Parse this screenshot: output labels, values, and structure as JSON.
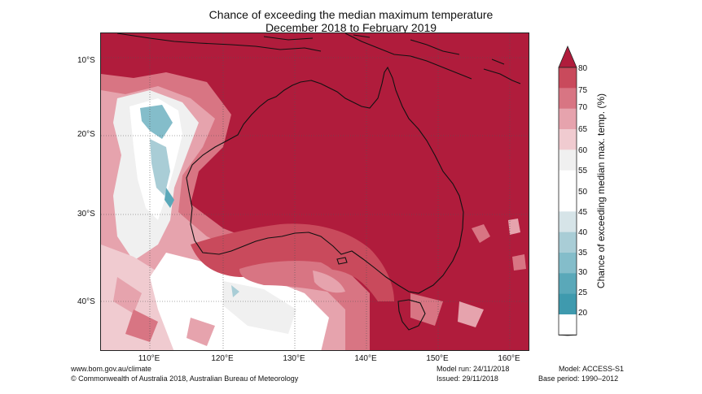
{
  "title": {
    "line1": "Chance of exceeding the median maximum temperature",
    "line2": "December 2018 to February 2019"
  },
  "map": {
    "latitude_labels": [
      "10°S",
      "20°S",
      "30°S",
      "40°S"
    ],
    "longitude_labels": [
      "110°E",
      "120°E",
      "130°E",
      "140°E",
      "150°E",
      "160°E"
    ],
    "dominant_color": "#b01c3c"
  },
  "colorbar": {
    "label": "Chance of exceeding median max. temp. (%)",
    "ticks": [
      "80",
      "75",
      "70",
      "65",
      "60",
      "55",
      "50",
      "45",
      "40",
      "35",
      "30",
      "25",
      "20"
    ],
    "colors": [
      "#b01c3c",
      "#c94a5c",
      "#d87583",
      "#e6a3ad",
      "#f0cbd0",
      "#f0f0f0",
      "#ffffff",
      "#ffffff",
      "#d6e4e8",
      "#a9cdd6",
      "#84bdca",
      "#5aa8b9",
      "#3f9aae"
    ]
  },
  "footer": {
    "url": "www.bom.gov.au/climate",
    "copyright": "© Commonwealth of Australia 2018, Australian Bureau of Meteorology",
    "model_run": "Model run: 24/11/2018",
    "issued": "Issued: 29/11/2018",
    "model": "Model: ACCESS-S1",
    "base_period": "Base period: 1990–2012"
  }
}
